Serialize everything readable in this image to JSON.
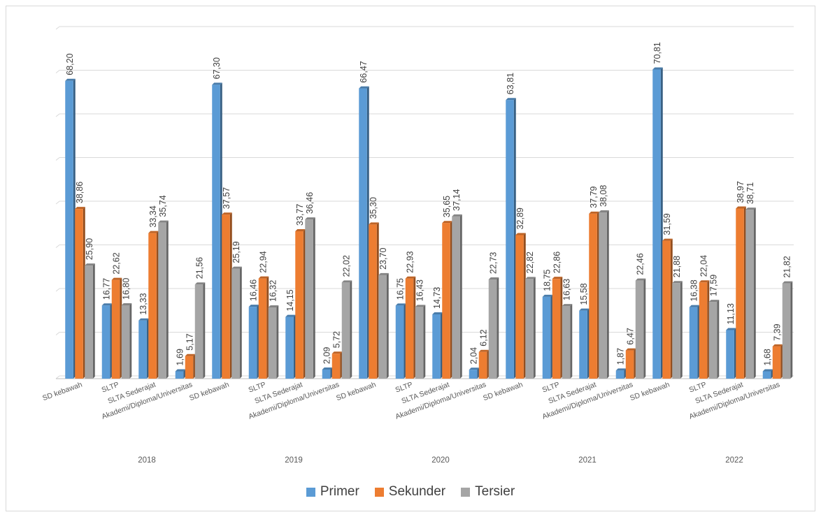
{
  "chart_data": {
    "type": "bar",
    "title": "",
    "xlabel": "",
    "ylabel": "",
    "ylim": [
      0,
      80
    ],
    "y_gridlines": [
      0,
      10,
      20,
      30,
      40,
      50,
      60,
      70,
      80
    ],
    "grid": true,
    "legend_position": "bottom",
    "groups": [
      {
        "year": "2018",
        "categories": [
          "SD kebawah",
          "SLTP",
          "SLTA Sederajat",
          "Akademi/Diploma/Universitas"
        ]
      },
      {
        "year": "2019",
        "categories": [
          "SD kebawah",
          "SLTP",
          "SLTA Sederajat",
          "Akademi/Diploma/Universitas"
        ]
      },
      {
        "year": "2020",
        "categories": [
          "SD kebawah",
          "SLTP",
          "SLTA Sederajat",
          "Akademi/Diploma/Universitas"
        ]
      },
      {
        "year": "2021",
        "categories": [
          "SD kebawah",
          "SLTP",
          "SLTA Sederajat",
          "Akademi/Diploma/Universitas"
        ]
      },
      {
        "year": "2022",
        "categories": [
          "SD kebawah",
          "SLTP",
          "SLTA Sederajat",
          "Akademi/Diploma/Universitas"
        ]
      }
    ],
    "series": [
      {
        "name": "Primer",
        "color": "#5b9bd5",
        "values": [
          68.2,
          16.77,
          13.33,
          1.69,
          67.3,
          16.46,
          14.15,
          2.09,
          66.47,
          16.75,
          14.73,
          2.04,
          63.81,
          18.75,
          15.58,
          1.87,
          70.81,
          16.38,
          11.13,
          1.68
        ],
        "labels": [
          "68,20",
          "16,77",
          "13,33",
          "1,69",
          "67,30",
          "16,46",
          "14,15",
          "2,09",
          "66,47",
          "16,75",
          "14,73",
          "2,04",
          "63,81",
          "18,75",
          "15,58",
          "1,87",
          "70,81",
          "16,38",
          "11,13",
          "1,68"
        ]
      },
      {
        "name": "Sekunder",
        "color": "#ed7d31",
        "values": [
          38.86,
          22.62,
          33.34,
          5.17,
          37.57,
          22.94,
          33.77,
          5.72,
          35.3,
          22.93,
          35.65,
          6.12,
          32.89,
          22.86,
          37.79,
          6.47,
          31.59,
          22.04,
          38.97,
          7.39
        ],
        "labels": [
          "38,86",
          "22,62",
          "33,34",
          "5,17",
          "37,57",
          "22,94",
          "33,77",
          "5,72",
          "35,30",
          "22,93",
          "35,65",
          "6,12",
          "32,89",
          "22,86",
          "37,79",
          "6,47",
          "31,59",
          "22,04",
          "38,97",
          "7,39"
        ]
      },
      {
        "name": "Tersier",
        "color": "#a5a5a5",
        "values": [
          25.9,
          16.8,
          35.74,
          21.56,
          25.19,
          16.32,
          36.46,
          22.02,
          23.7,
          16.43,
          37.14,
          22.73,
          22.82,
          16.63,
          38.08,
          22.46,
          21.88,
          17.59,
          38.71,
          21.82
        ],
        "labels": [
          "25,90",
          "16,80",
          "35,74",
          "21,56",
          "25,19",
          "16,32",
          "36,46",
          "22,02",
          "23,70",
          "16,43",
          "37,14",
          "22,73",
          "22,82",
          "16,63",
          "38,08",
          "22,46",
          "21,88",
          "17,59",
          "38,71",
          "21,82"
        ]
      }
    ]
  },
  "legend": {
    "items": [
      {
        "label": "Primer",
        "color": "#5b9bd5"
      },
      {
        "label": "Sekunder",
        "color": "#ed7d31"
      },
      {
        "label": "Tersier",
        "color": "#a5a5a5"
      }
    ]
  }
}
